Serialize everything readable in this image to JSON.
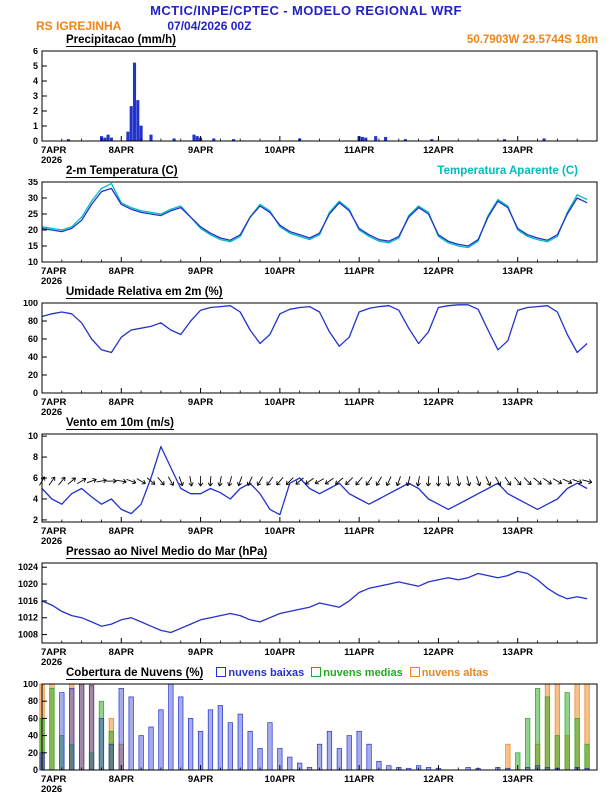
{
  "header": {
    "line1": "MCTIC/INPE/CPTEC - MODELO REGIONAL WRF",
    "station": "RS IGREJINHA",
    "datetime": "07/04/2026 00Z",
    "coords": "50.7903W 29.5744S 18m"
  },
  "colors": {
    "header_blue": "#2222c8",
    "orange": "#ef8418",
    "line_blue": "#2233cc",
    "cyan": "#00bdbd",
    "green": "#22aa22",
    "black": "#000000"
  },
  "x_axis": {
    "range_hours": [
      0,
      168
    ],
    "step_hours": 3,
    "day_tick_hours": [
      0,
      24,
      48,
      72,
      96,
      120,
      144
    ],
    "day_labels": [
      "7APR",
      "8APR",
      "9APR",
      "10APR",
      "11APR",
      "12APR",
      "13APR"
    ],
    "year_label": "2026"
  },
  "chart_data": [
    {
      "id": "precipitacao",
      "type": "bar",
      "title": "Precipitacao (mm/h)",
      "ylabel": "mm/h",
      "ylim": [
        0,
        6
      ],
      "yticks": [
        0,
        1,
        2,
        3,
        4,
        5,
        6
      ],
      "bar_width": 2.4,
      "series": [
        {
          "name": "precipitacao",
          "color": "#2233cc",
          "fill_opacity": 1,
          "hours": [
            8,
            18,
            19,
            20,
            21,
            26,
            27,
            28,
            29,
            30,
            33,
            40,
            46,
            47,
            48,
            52,
            58,
            78,
            96,
            97,
            98,
            101,
            104,
            110,
            118,
            140,
            152
          ],
          "values": [
            0.1,
            0.3,
            0.2,
            0.4,
            0.2,
            0.6,
            2.3,
            5.2,
            2.7,
            1.0,
            0.4,
            0.15,
            0.4,
            0.3,
            0.2,
            0.15,
            0.1,
            0.15,
            0.3,
            0.25,
            0.2,
            0.3,
            0.25,
            0.1,
            0.1,
            0.1,
            0.15
          ]
        }
      ]
    },
    {
      "id": "temperatura",
      "type": "line",
      "title": "2-m Temperatura (C)",
      "right_label": "Temperatura Aparente (C)",
      "ylim": [
        10,
        35
      ],
      "yticks": [
        10,
        15,
        20,
        25,
        30,
        35
      ],
      "series": [
        {
          "name": "temperatura-aparente",
          "color": "#00bdbd",
          "values": [
            21,
            20.5,
            20,
            21,
            24,
            29,
            33,
            34.5,
            28.5,
            27,
            26,
            25.5,
            25,
            26.5,
            27.5,
            24,
            20.5,
            18.5,
            17,
            16.3,
            18,
            24,
            28,
            26,
            21,
            19,
            18,
            17,
            18.5,
            25.5,
            29,
            26.5,
            20,
            18,
            16.5,
            16,
            17.5,
            24.5,
            27.5,
            25.5,
            18,
            16,
            15,
            14.5,
            16.5,
            24.5,
            29.5,
            27.5,
            20,
            18,
            17,
            16.3,
            18,
            25.5,
            31,
            29.5
          ]
        },
        {
          "name": "temperatura-2m",
          "color": "#2233cc",
          "values": [
            20.5,
            20,
            19.5,
            20.5,
            23,
            28,
            32,
            33,
            28,
            26.5,
            25.5,
            25,
            24.5,
            26,
            27,
            24,
            21,
            19,
            17.5,
            16.8,
            18.5,
            24,
            27.5,
            25.5,
            21.5,
            19.5,
            18.5,
            17.5,
            19,
            25,
            28.5,
            26,
            20.5,
            18.5,
            17,
            16.5,
            18,
            24,
            27,
            25,
            18.5,
            16.5,
            15.5,
            15,
            17,
            24,
            29,
            27,
            20.5,
            18.5,
            17.5,
            16.8,
            18.5,
            25,
            30,
            28.5
          ]
        }
      ]
    },
    {
      "id": "umidade",
      "type": "line",
      "title": "Umidade Relativa em 2m (%)",
      "ylim": [
        0,
        100
      ],
      "yticks": [
        0,
        20,
        40,
        60,
        80,
        100
      ],
      "series": [
        {
          "name": "umidade-relativa",
          "color": "#2233cc",
          "values": [
            85,
            88,
            90,
            88,
            78,
            60,
            48,
            45,
            62,
            70,
            72,
            74,
            78,
            70,
            65,
            80,
            92,
            95,
            96,
            97,
            90,
            70,
            55,
            65,
            88,
            93,
            95,
            96,
            90,
            68,
            52,
            62,
            90,
            94,
            96,
            97,
            92,
            72,
            55,
            68,
            95,
            97,
            98,
            98,
            93,
            70,
            48,
            58,
            92,
            95,
            96,
            97,
            90,
            65,
            45,
            55
          ]
        }
      ]
    },
    {
      "id": "vento",
      "type": "line",
      "title": "Vento em 10m (m/s)",
      "ylim": [
        1.8,
        10.2
      ],
      "yticks": [
        2,
        4,
        6,
        8,
        10
      ],
      "series": [
        {
          "name": "velocidade-vento",
          "color": "#2233cc",
          "values": [
            5,
            4,
            3.5,
            4.5,
            5,
            4.2,
            3.5,
            4,
            3,
            2.6,
            3.5,
            6,
            9,
            7,
            5,
            4.5,
            4.5,
            5,
            4.6,
            4,
            5,
            5.5,
            4.5,
            3,
            2.5,
            5.5,
            6,
            5,
            4.5,
            5,
            5.5,
            4.5,
            4,
            3.5,
            4,
            4.5,
            5,
            5.5,
            5,
            4,
            3.5,
            3,
            3.5,
            4,
            4.5,
            5,
            5.5,
            4.5,
            4,
            3.5,
            3,
            3.5,
            4,
            5,
            5.5,
            5
          ]
        }
      ],
      "barbs": {
        "level": 5.7,
        "color": "#000000",
        "directions": [
          30,
          35,
          40,
          50,
          60,
          70,
          80,
          90,
          100,
          110,
          120,
          130,
          140,
          150,
          160,
          170,
          180,
          185,
          190,
          195,
          200,
          205,
          210,
          215,
          220,
          225,
          230,
          235,
          240,
          235,
          230,
          225,
          220,
          215,
          210,
          205,
          200,
          195,
          190,
          185,
          180,
          175,
          170,
          165,
          160,
          155,
          150,
          145,
          140,
          135,
          130,
          125,
          120,
          115,
          110,
          105
        ]
      }
    },
    {
      "id": "pressao",
      "type": "line",
      "title": "Pressao ao Nivel Medio do Mar (hPa)",
      "ylim": [
        1006,
        1025
      ],
      "yticks": [
        1008,
        1012,
        1016,
        1020,
        1024
      ],
      "series": [
        {
          "name": "pressao-nivel-mar",
          "color": "#2233cc",
          "values": [
            1016,
            1015,
            1013.5,
            1012.5,
            1012,
            1011,
            1010,
            1010.5,
            1011.5,
            1012,
            1011,
            1010,
            1009,
            1008.5,
            1009.5,
            1010.5,
            1011.5,
            1012,
            1012.5,
            1013,
            1012.5,
            1011.5,
            1011,
            1012,
            1013,
            1013.5,
            1014,
            1014.5,
            1015.5,
            1015,
            1014.5,
            1016,
            1018,
            1019,
            1019.5,
            1020,
            1020.5,
            1020,
            1019.5,
            1020.5,
            1021,
            1021.5,
            1021,
            1021.5,
            1022.5,
            1022,
            1021.5,
            1022,
            1023,
            1022.5,
            1021,
            1019,
            1017.5,
            1016.5,
            1017,
            1016.5
          ]
        }
      ]
    },
    {
      "id": "nuvens",
      "type": "bar",
      "title": "Cobertura de Nuvens (%)",
      "ylim": [
        0,
        100
      ],
      "yticks": [
        0,
        20,
        40,
        60,
        80,
        100
      ],
      "bar_width": 4.5,
      "legend": [
        {
          "label": "nuvens baixas",
          "color": "#2233cc"
        },
        {
          "label": "nuvens medias",
          "color": "#22aa22"
        },
        {
          "label": "nuvens altas",
          "color": "#ef8418"
        }
      ],
      "series": [
        {
          "name": "nuvens-altas",
          "color": "#ef8418",
          "fill_opacity": 0.5,
          "values": [
            100,
            100,
            0,
            100,
            100,
            100,
            0,
            60,
            30,
            0,
            0,
            0,
            0,
            0,
            0,
            0,
            0,
            0,
            0,
            0,
            0,
            0,
            0,
            0,
            0,
            0,
            0,
            0,
            0,
            0,
            0,
            0,
            0,
            0,
            0,
            0,
            0,
            0,
            0,
            0,
            0,
            0,
            0,
            0,
            0,
            0,
            0,
            30,
            0,
            0,
            30,
            100,
            100,
            40,
            100,
            100
          ]
        },
        {
          "name": "nuvens-medias",
          "color": "#22aa22",
          "fill_opacity": 0.5,
          "values": [
            60,
            95,
            40,
            30,
            0,
            20,
            80,
            45,
            0,
            0,
            0,
            0,
            0,
            0,
            0,
            0,
            0,
            0,
            0,
            0,
            0,
            0,
            0,
            0,
            0,
            0,
            0,
            0,
            0,
            0,
            0,
            0,
            0,
            0,
            0,
            0,
            0,
            0,
            0,
            0,
            0,
            0,
            0,
            0,
            0,
            0,
            0,
            0,
            20,
            60,
            95,
            85,
            40,
            90,
            60,
            30
          ]
        },
        {
          "name": "nuvens-baixas",
          "color": "#2233cc",
          "fill_opacity": 0.4,
          "values": [
            20,
            0,
            90,
            95,
            100,
            98,
            60,
            30,
            95,
            85,
            40,
            50,
            70,
            100,
            85,
            60,
            45,
            70,
            75,
            55,
            65,
            45,
            25,
            55,
            25,
            15,
            8,
            3,
            30,
            45,
            25,
            40,
            45,
            30,
            10,
            5,
            3,
            2,
            5,
            3,
            2,
            0,
            0,
            3,
            2,
            0,
            3,
            2,
            0,
            3,
            5,
            3,
            2,
            0,
            3,
            2
          ]
        }
      ]
    }
  ]
}
